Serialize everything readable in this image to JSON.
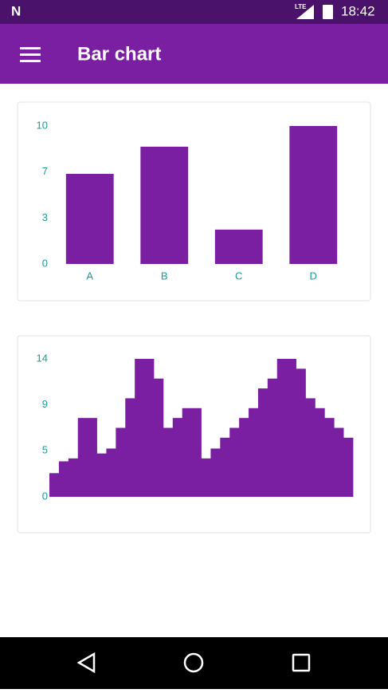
{
  "status_bar": {
    "time": "18:42",
    "network": "LTE"
  },
  "app_bar": {
    "title": "Bar chart"
  },
  "chart_data": [
    {
      "type": "bar",
      "categories": [
        "A",
        "B",
        "C",
        "D"
      ],
      "values": [
        6.53,
        8.5,
        2.49,
        10
      ],
      "color": "#7b1fa2",
      "ylim": [
        0,
        10
      ],
      "yticks": [
        0,
        {
          "value": 3.33,
          "label": "3"
        },
        {
          "value": 6.67,
          "label": "7"
        },
        10
      ]
    },
    {
      "type": "histogram",
      "values": [
        2.4,
        3.6,
        3.9,
        8,
        8,
        4.4,
        4.9,
        7,
        10,
        14,
        14,
        12,
        7,
        8,
        9,
        9,
        3.9,
        4.9,
        6,
        7,
        8,
        9,
        11,
        12,
        14,
        14,
        13,
        10,
        9,
        8,
        7,
        6
      ],
      "color": "#7b1fa2",
      "ylim": [
        0,
        14
      ],
      "yticks": [
        0,
        {
          "value": 4.67,
          "label": "5"
        },
        {
          "value": 9.33,
          "label": "9"
        },
        14
      ]
    }
  ]
}
